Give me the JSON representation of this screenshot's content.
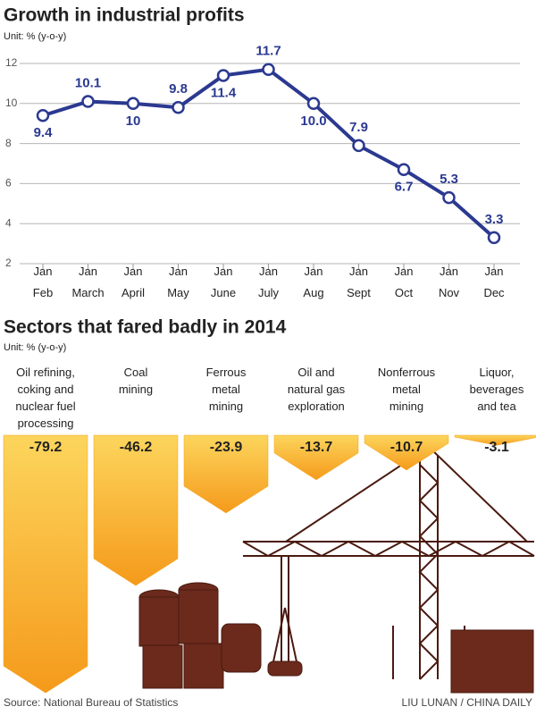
{
  "chart_data": [
    {
      "type": "line",
      "title": "Growth in industrial profits",
      "subtitle": "Unit: % (y-o-y)",
      "categories": [
        [
          "Jan",
          "Feb"
        ],
        [
          "Jan",
          "March"
        ],
        [
          "Jan",
          "April"
        ],
        [
          "Jan",
          "May"
        ],
        [
          "Jan",
          "June"
        ],
        [
          "Jan",
          "July"
        ],
        [
          "Jan",
          "Aug"
        ],
        [
          "Jan",
          "Sept"
        ],
        [
          "Jan",
          "Oct"
        ],
        [
          "Jan",
          "Nov"
        ],
        [
          "Jan",
          "Dec"
        ]
      ],
      "values": [
        9.4,
        10.1,
        10,
        9.8,
        11.4,
        11.7,
        10.0,
        7.9,
        6.7,
        5.3,
        3.3
      ],
      "value_labels": [
        "9.4",
        "10.1",
        "10",
        "9.8",
        "11.4",
        "11.7",
        "10.0",
        "7.9",
        "6.7",
        "5.3",
        "3.3"
      ],
      "color": "#2b3990",
      "ylim": [
        2,
        12
      ],
      "yticks": [
        2,
        4,
        6,
        8,
        10,
        12
      ],
      "grid": true
    },
    {
      "type": "bar",
      "title": "Sectors that fared badly in 2014",
      "subtitle": "Unit: % (y-o-y)",
      "categories": [
        [
          "Oil refining,",
          "coking and",
          "nuclear fuel",
          "processing"
        ],
        [
          "Coal",
          "mining"
        ],
        [
          "Ferrous",
          "metal",
          "mining"
        ],
        [
          "Oil and",
          "natural gas",
          "exploration"
        ],
        [
          "Nonferrous",
          "metal",
          "mining"
        ],
        [
          "Liquor,",
          "beverages",
          "and tea"
        ]
      ],
      "values": [
        -79.2,
        -46.2,
        -23.9,
        -13.7,
        -10.7,
        -3.1
      ],
      "color": "#f7a21b"
    }
  ],
  "source": "Source: National Bureau of Statistics",
  "credit": "LIU LUNAN / CHINA DAILY"
}
